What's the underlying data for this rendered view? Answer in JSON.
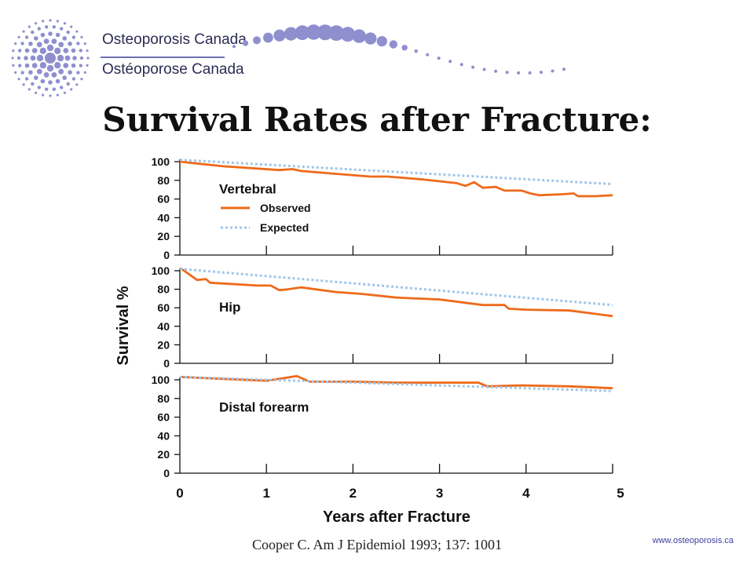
{
  "header": {
    "org_name_en": "Osteoporosis Canada",
    "org_name_fr": "Ostéoporose Canada"
  },
  "slide_title": "Survival Rates after Fracture:",
  "citation": "Cooper C. Am J Epidemiol 1993; 137: 1001",
  "website": "www.osteoporosis.ca",
  "colors": {
    "observed": "#ee6a1a",
    "expected": "#9fc6ea",
    "logo": "#8f8fcf",
    "axis": "#111111"
  },
  "chart_data": {
    "type": "line",
    "xlabel": "Years after Fracture",
    "ylabel": "Survival %",
    "xlim": [
      0,
      5
    ],
    "ylim": [
      0,
      100
    ],
    "x_ticks": [
      0,
      1,
      2,
      3,
      4,
      5
    ],
    "y_ticks": [
      0,
      20,
      40,
      60,
      80,
      100
    ],
    "legend": {
      "placement": "inside top panel, left",
      "items": [
        {
          "label": "Observed",
          "style": "solid"
        },
        {
          "label": "Expected",
          "style": "dotted"
        }
      ]
    },
    "panels": [
      {
        "name": "Vertebral",
        "series": [
          {
            "name": "Observed",
            "points": [
              [
                0,
                100
              ],
              [
                0.5,
                95
              ],
              [
                1.15,
                91
              ],
              [
                1.3,
                92
              ],
              [
                1.4,
                90
              ],
              [
                1.8,
                87
              ],
              [
                2.2,
                84
              ],
              [
                2.4,
                84
              ],
              [
                2.8,
                81
              ],
              [
                3.2,
                77
              ],
              [
                3.3,
                74
              ],
              [
                3.4,
                78
              ],
              [
                3.5,
                72
              ],
              [
                3.65,
                73
              ],
              [
                3.75,
                69
              ],
              [
                3.95,
                69
              ],
              [
                4.05,
                66
              ],
              [
                4.15,
                64
              ],
              [
                4.4,
                65
              ],
              [
                4.55,
                66
              ],
              [
                4.6,
                63
              ],
              [
                4.8,
                63
              ],
              [
                5,
                64
              ]
            ]
          },
          {
            "name": "Expected",
            "points": [
              [
                0,
                102
              ],
              [
                5,
                76
              ]
            ]
          }
        ]
      },
      {
        "name": "Hip",
        "series": [
          {
            "name": "Observed",
            "points": [
              [
                0,
                103
              ],
              [
                0.05,
                100
              ],
              [
                0.2,
                90
              ],
              [
                0.3,
                91
              ],
              [
                0.35,
                87
              ],
              [
                0.9,
                84
              ],
              [
                1.05,
                84
              ],
              [
                1.15,
                79
              ],
              [
                1.25,
                80
              ],
              [
                1.4,
                82
              ],
              [
                1.8,
                77
              ],
              [
                2.1,
                75
              ],
              [
                2.5,
                71
              ],
              [
                3,
                69
              ],
              [
                3.5,
                63
              ],
              [
                3.75,
                63
              ],
              [
                3.8,
                59
              ],
              [
                4,
                58
              ],
              [
                4.5,
                57
              ],
              [
                5,
                51
              ]
            ]
          },
          {
            "name": "Expected",
            "points": [
              [
                0,
                102
              ],
              [
                5,
                63
              ]
            ]
          }
        ]
      },
      {
        "name": "Distal forearm",
        "series": [
          {
            "name": "Observed",
            "points": [
              [
                0,
                103
              ],
              [
                0.5,
                101
              ],
              [
                1,
                99
              ],
              [
                1.35,
                104
              ],
              [
                1.5,
                98
              ],
              [
                2,
                98
              ],
              [
                2.5,
                97
              ],
              [
                3,
                97
              ],
              [
                3.45,
                97
              ],
              [
                3.55,
                93
              ],
              [
                3.95,
                94
              ],
              [
                4.5,
                93
              ],
              [
                5,
                91
              ]
            ]
          },
          {
            "name": "Expected",
            "points": [
              [
                0,
                103
              ],
              [
                5,
                88
              ]
            ]
          }
        ]
      }
    ]
  }
}
